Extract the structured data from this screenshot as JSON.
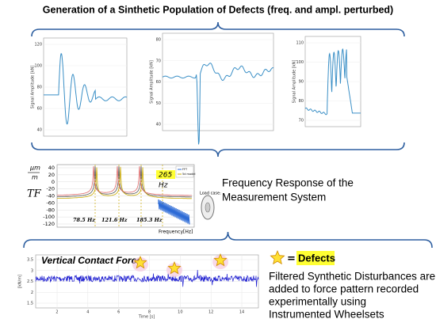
{
  "title": "Generation of a Sinthetic Population of Defects (freq. and ampl. perturbed)",
  "panels": [
    {
      "y_label": "Signal Amplitude [kN]",
      "yticks": [
        120,
        100,
        80,
        60,
        40
      ]
    },
    {
      "y_label": "Signal Amplitude [kN]",
      "yticks": [
        80,
        70,
        60,
        50,
        40
      ]
    },
    {
      "y_label": "Signal Amplitude [kN]",
      "yticks": [
        110,
        100,
        90,
        80,
        70
      ]
    }
  ],
  "tf": {
    "unit_top": "μm",
    "unit_bottom": "m",
    "label": "TF",
    "yticks": [
      40,
      20,
      0,
      -20,
      -40,
      -60,
      -80,
      -100,
      -120
    ],
    "peaks": [
      "78.5 Hz",
      "121.6 Hz",
      "185.3 Hz"
    ],
    "highlight": [
      "265",
      "Hz"
    ],
    "x_label": "Frequency[Hz]",
    "legend": [
      "FFT",
      "5d model"
    ],
    "inset": "Load case:"
  },
  "tf_caption": [
    "Frequency Response of the",
    "Measurement System"
  ],
  "force": {
    "title": "Vertical Contact Force",
    "y_label": "[kN/m]",
    "yticks": [
      3.5,
      3,
      2.5,
      2,
      1.5
    ],
    "xticks": [
      2,
      4,
      6,
      8,
      10,
      12,
      14
    ],
    "x_label": "Time [s]"
  },
  "defects": {
    "symbol": "=",
    "label": "Defects"
  },
  "note": [
    "Filtered Synthetic Disturbances are",
    "added to force pattern recorded",
    "experimentally using",
    "Instrumented Wheelsets"
  ]
}
